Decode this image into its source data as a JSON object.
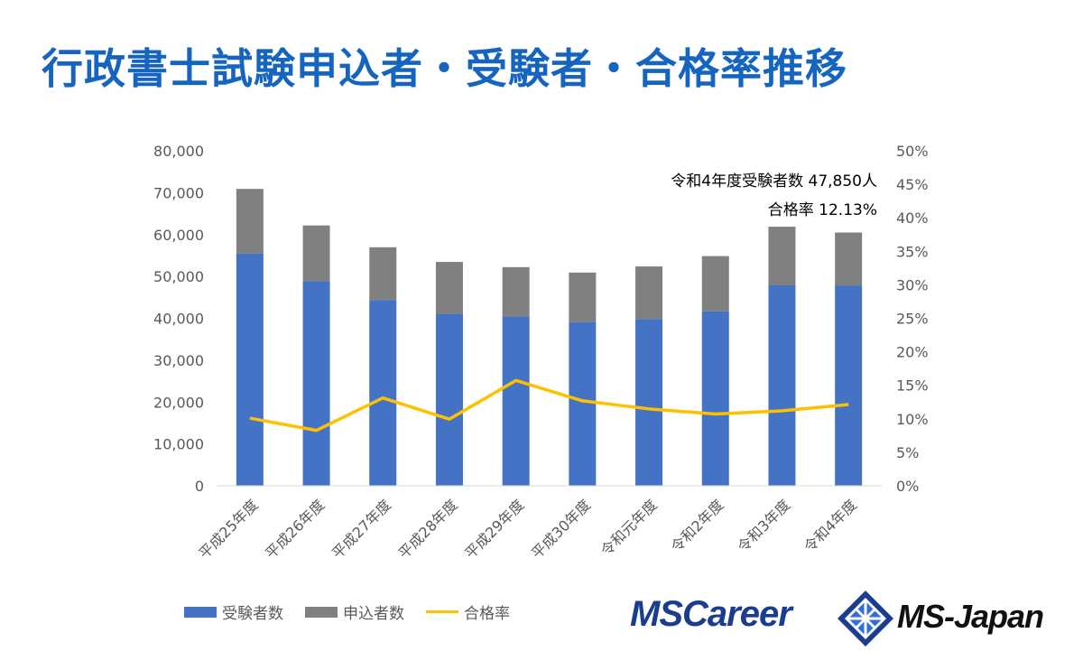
{
  "title": "行政書士試験申込者・受験者・合格率推移",
  "annotation": {
    "line1": "令和4年度受験者数 47,850人",
    "line2": "合格率 12.13%"
  },
  "legend": {
    "examinees": "受験者数",
    "applicants": "申込者数",
    "pass_rate": "合格率"
  },
  "logos": {
    "left": "MSCareer",
    "right": "MS-Japan"
  },
  "colors": {
    "examinees": "#4472c4",
    "applicants": "#808080",
    "pass_rate": "#ffc000",
    "title": "#1565c0"
  },
  "chart_data": {
    "type": "bar",
    "stacked": true,
    "categories": [
      "平成25年度",
      "平成26年度",
      "平成27年度",
      "平成28年度",
      "平成29年度",
      "平成30年度",
      "令和元年度",
      "令和2年度",
      "令和3年度",
      "令和4年度"
    ],
    "series": [
      {
        "name": "受験者数",
        "type": "bar",
        "axis": "left",
        "values": [
          55436,
          48869,
          44366,
          41053,
          40449,
          39105,
          39821,
          41681,
          47870,
          47850
        ]
      },
      {
        "name": "申込者数",
        "type": "bar",
        "axis": "left",
        "stack_total": [
          70896,
          62172,
          56965,
          53456,
          52214,
          50926,
          52386,
          54847,
          61869,
          60479
        ]
      },
      {
        "name": "合格率",
        "type": "line",
        "axis": "right",
        "values": [
          10.1,
          8.27,
          13.12,
          9.95,
          15.72,
          12.68,
          11.48,
          10.71,
          11.18,
          12.13
        ]
      }
    ],
    "y_left": {
      "min": 0,
      "max": 80000,
      "ticks": [
        "0",
        "10,000",
        "20,000",
        "30,000",
        "40,000",
        "50,000",
        "60,000",
        "70,000",
        "80,000"
      ]
    },
    "y_right": {
      "min": 0,
      "max": 50,
      "ticks": [
        "0%",
        "5%",
        "10%",
        "15%",
        "20%",
        "25%",
        "30%",
        "35%",
        "40%",
        "45%",
        "50%"
      ]
    },
    "legend_position": "bottom-left",
    "grid": false
  }
}
